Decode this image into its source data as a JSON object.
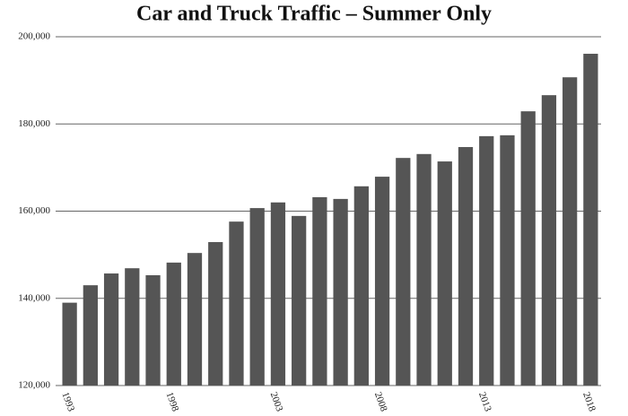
{
  "chart_data": {
    "type": "bar",
    "title": "Car and Truck Traffic – Summer Only",
    "categories": [
      "1993",
      null,
      null,
      null,
      null,
      "1998",
      null,
      null,
      null,
      null,
      "2003",
      null,
      null,
      null,
      null,
      "2008",
      null,
      null,
      null,
      null,
      "2013",
      null,
      null,
      null,
      null,
      "2018"
    ],
    "values": [
      139000,
      143000,
      145700,
      146900,
      145300,
      148200,
      150400,
      152900,
      157600,
      160700,
      162000,
      158900,
      163200,
      162800,
      165700,
      167900,
      172200,
      173100,
      171400,
      174700,
      177200,
      177400,
      182900,
      186600,
      190700,
      196100
    ],
    "color": "#555555",
    "ylim": [
      120000,
      200000
    ],
    "yticks": [
      {
        "value": 120000,
        "label": "120,000"
      },
      {
        "value": 140000,
        "label": "140,000"
      },
      {
        "value": 160000,
        "label": "160,000"
      },
      {
        "value": 180000,
        "label": "180,000"
      },
      {
        "value": 200000,
        "label": "200,000"
      }
    ],
    "grid": true
  }
}
